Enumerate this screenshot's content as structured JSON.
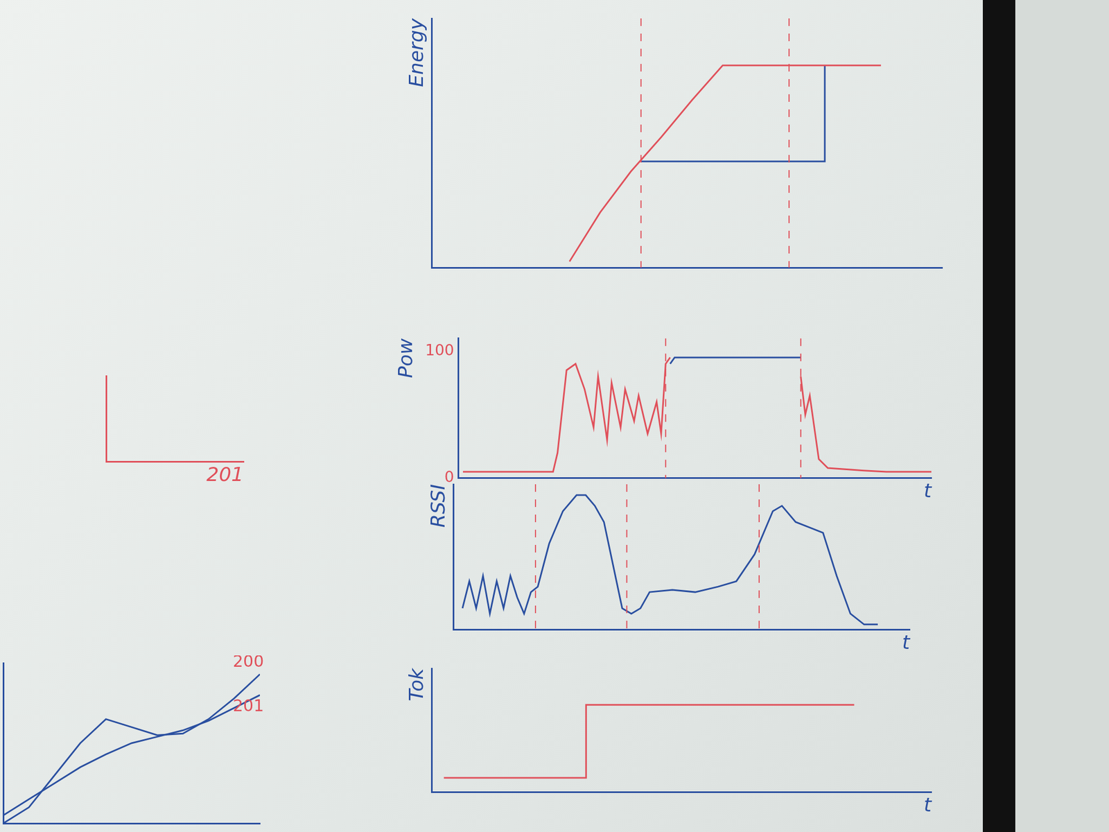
{
  "chart_data": [
    {
      "type": "line",
      "y_label": "Energy",
      "xlim": [
        0,
        10
      ],
      "ylim": [
        -2.2,
        10
      ],
      "tick_labels": false,
      "grid": false,
      "color": "#2a4fa0",
      "vlines": [
        4.1,
        7.0
      ],
      "series": [
        {
          "color": "#e0505a",
          "x": [
            2.7,
            3.3,
            3.9,
            4.5,
            5.1,
            5.7,
            7,
            8.8
          ],
          "values": [
            -1.9,
            0.5,
            2.5,
            4.2,
            6,
            7.7,
            7.7,
            7.7
          ]
        },
        {
          "color": "#2a4fa0",
          "x": [
            4.1,
            7.7,
            7.7
          ],
          "values": [
            3,
            3,
            7.7
          ]
        }
      ]
    },
    {
      "type": "line",
      "y_label": "Pow",
      "x_label": "t",
      "xlim": [
        -0.5,
        10
      ],
      "ylim": [
        0,
        110
      ],
      "yticks": [
        0,
        100
      ],
      "tick_labels": "y",
      "grid": false,
      "color": "#2a4fa0",
      "vlines": [
        4.1,
        7.1
      ],
      "series": [
        {
          "color": "#e0505a",
          "x": [
            -0.4,
            1.6,
            1.7,
            1.9,
            2.1,
            2.3,
            2.5,
            2.6,
            2.8,
            2.9,
            3.1,
            3.2,
            3.4,
            3.5,
            3.7,
            3.9,
            4.0,
            4.1,
            4.2,
            5.5,
            7.1,
            7.2,
            7.3,
            7.5,
            7.7,
            8.5,
            9,
            10
          ],
          "values": [
            5,
            5,
            20,
            85,
            90,
            70,
            40,
            80,
            30,
            75,
            40,
            70,
            45,
            65,
            35,
            60,
            35,
            90,
            95,
            null,
            80,
            50,
            65,
            15,
            8,
            6,
            5,
            5
          ]
        },
        {
          "color": "#2a4fa0",
          "x": [
            4.2,
            4.3,
            7.1
          ],
          "values": [
            90,
            95,
            95
          ]
        }
      ]
    },
    {
      "type": "line",
      "y_label": "RSSI",
      "x_label": "t",
      "xlim": [
        0,
        10
      ],
      "ylim": [
        -3,
        10.5
      ],
      "tick_labels": false,
      "grid": false,
      "color": "#2a4fa0",
      "vlines": [
        1.8,
        3.8,
        6.7
      ],
      "series": [
        {
          "color": "#2a4fa0",
          "x": [
            0.2,
            0.35,
            0.5,
            0.65,
            0.8,
            0.95,
            1.1,
            1.25,
            1.4,
            1.55,
            1.7,
            1.85,
            2.1,
            2.4,
            2.7,
            2.9,
            3.1,
            3.3,
            3.5,
            3.7,
            3.9,
            4.1,
            4.3,
            4.8,
            5.3,
            5.8,
            6.2,
            6.6,
            7.0,
            7.2,
            7.5,
            7.8,
            8.1,
            8.4,
            8.7,
            9.0,
            9.3
          ],
          "values": [
            -1,
            1.5,
            -1,
            2,
            -1.5,
            1.5,
            -1,
            2,
            0,
            -1.5,
            0.5,
            1,
            5,
            8,
            9.5,
            9.5,
            8.5,
            7,
            3,
            -1,
            -1.5,
            -1,
            0.5,
            0.7,
            0.5,
            1,
            1.5,
            4,
            8,
            8.5,
            7,
            6.5,
            6,
            2,
            -1.5,
            -2.5,
            -2.5
          ]
        }
      ]
    },
    {
      "type": "line",
      "y_label": "Tok",
      "x_label": "t",
      "xlim": [
        -2.3,
        10
      ],
      "ylim": [
        -0.2,
        1.5
      ],
      "tick_labels": false,
      "grid": false,
      "color": "#2a4fa0",
      "series": [
        {
          "color": "#e0505a",
          "x": [
            -2,
            1.5,
            1.5,
            8.1
          ],
          "values": [
            0,
            0,
            1,
            1
          ]
        }
      ]
    },
    {
      "type": "line",
      "x_label": "201",
      "xlim": [
        0,
        10
      ],
      "ylim": [
        0,
        10
      ],
      "tick_labels": false,
      "grid": false,
      "color": "#e0505a",
      "series": []
    },
    {
      "type": "line",
      "xlim": [
        0,
        10
      ],
      "ylim": [
        0,
        10
      ],
      "tick_labels": false,
      "grid": false,
      "color": "#2a4fa0",
      "series": [
        {
          "name": "200",
          "color": "#2a4fa0",
          "x": [
            0,
            1,
            2,
            3,
            4,
            5,
            6,
            7,
            8,
            9,
            10
          ],
          "values": [
            0,
            1,
            3,
            5,
            6.5,
            6,
            5.5,
            5.6,
            6.5,
            7.8,
            9.3
          ]
        },
        {
          "name": "201",
          "color": "#2a4fa0",
          "x": [
            0,
            1,
            2,
            3,
            4,
            5,
            6,
            7,
            8,
            9,
            10
          ],
          "values": [
            0.5,
            1.5,
            2.5,
            3.5,
            4.3,
            5,
            5.4,
            5.8,
            6.4,
            7.2,
            8
          ]
        }
      ]
    }
  ]
}
